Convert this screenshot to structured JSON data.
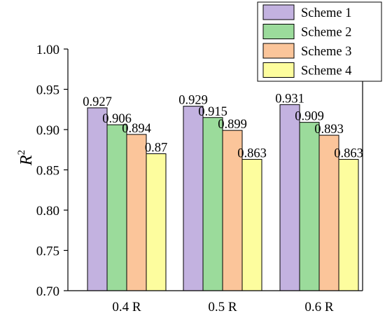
{
  "chart_data": {
    "type": "bar",
    "title": "",
    "xlabel": "",
    "ylabel": "R",
    "ylabel_superscript": "2",
    "categories": [
      "0.4 R",
      "0.5 R",
      "0.6 R"
    ],
    "ylim": [
      0.7,
      1.0
    ],
    "yticks": [
      "0.70",
      "0.75",
      "0.80",
      "0.85",
      "0.90",
      "0.95",
      "1.00"
    ],
    "legend_position": "top-right",
    "grid": false,
    "series": [
      {
        "name": "Scheme 1",
        "color": "#c3b2e0",
        "values": [
          0.927,
          0.929,
          0.931
        ],
        "labels": [
          "0.927",
          "0.929",
          "0.931"
        ]
      },
      {
        "name": "Scheme 2",
        "color": "#9bdb9b",
        "values": [
          0.906,
          0.915,
          0.909
        ],
        "labels": [
          "0.906",
          "0.915",
          "0.909"
        ]
      },
      {
        "name": "Scheme 3",
        "color": "#fbc59a",
        "values": [
          0.894,
          0.899,
          0.893
        ],
        "labels": [
          "0.894",
          "0.899",
          "0.893"
        ]
      },
      {
        "name": "Scheme 4",
        "color": "#fdfd9e",
        "values": [
          0.87,
          0.863,
          0.863
        ],
        "labels": [
          "0.87",
          "0.863",
          "0.863"
        ]
      }
    ]
  }
}
